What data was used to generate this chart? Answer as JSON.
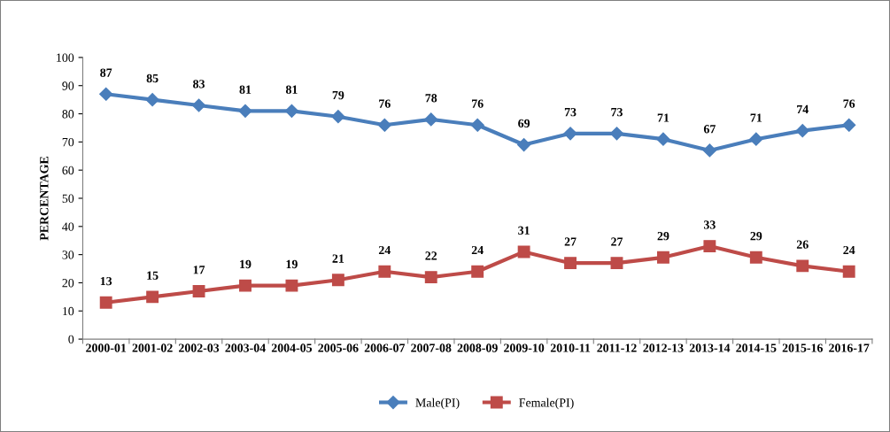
{
  "chart_data": {
    "type": "line",
    "ylabel": "PERCENTAGE",
    "categories": [
      "2000-01",
      "2001-02",
      "2002-03",
      "2003-04",
      "2004-05",
      "2005-06",
      "2006-07",
      "2007-08",
      "2008-09",
      "2009-10",
      "2010-11",
      "2011-12",
      "2012-13",
      "2013-14",
      "2014-15",
      "2015-16",
      "2016-17"
    ],
    "series": [
      {
        "name": "Male(PI)",
        "color": "#4a7ebb",
        "marker": "diamond",
        "values": [
          87,
          85,
          83,
          81,
          81,
          79,
          76,
          78,
          76,
          69,
          73,
          73,
          71,
          67,
          71,
          74,
          76
        ]
      },
      {
        "name": "Female(PI)",
        "color": "#be4b48",
        "marker": "square",
        "values": [
          13,
          15,
          17,
          19,
          19,
          21,
          24,
          22,
          24,
          31,
          27,
          27,
          29,
          33,
          29,
          26,
          24
        ]
      }
    ],
    "ylim": [
      0,
      100
    ],
    "yticks": [
      0,
      10,
      20,
      30,
      40,
      50,
      60,
      70,
      80,
      90,
      100
    ],
    "grid": false,
    "legend": "bottom",
    "data_labels": true,
    "line_style": "solid"
  }
}
